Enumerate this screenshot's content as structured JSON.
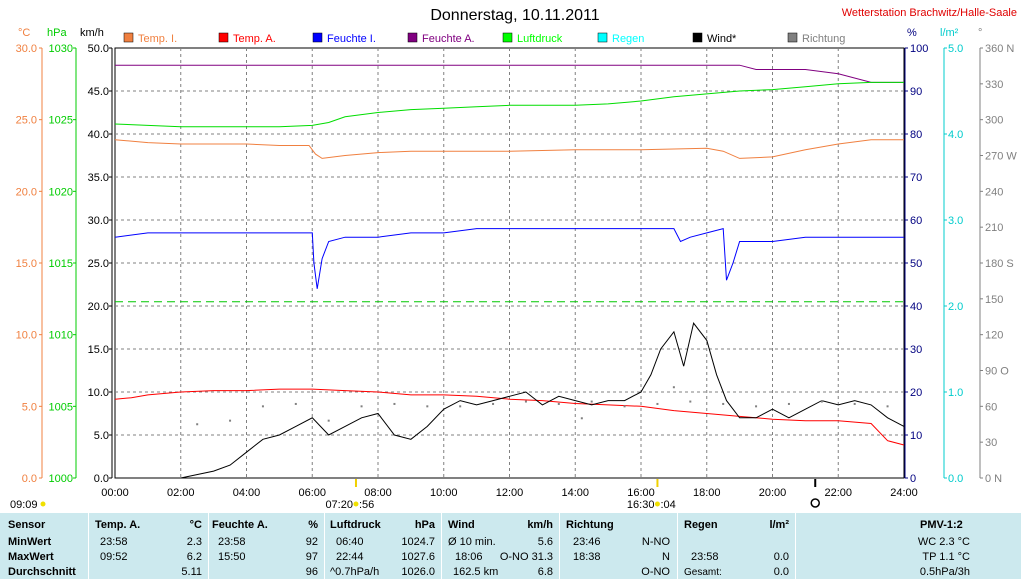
{
  "chart_data": {
    "type": "line",
    "title": "Donnerstag, 10.11.2011",
    "station": "Wetterstation Brachwitz/Halle-Saale",
    "axis_units": {
      "temp": "°C",
      "pressure": "hPa",
      "wind": "km/h",
      "humidity": "%",
      "rain": "l/m²",
      "direction": "°"
    },
    "x": {
      "range_hours": [
        0,
        24
      ],
      "tick_labels": [
        "00:00",
        "02:00",
        "04:00",
        "06:00",
        "08:00",
        "10:00",
        "12:00",
        "14:00",
        "16:00",
        "18:00",
        "20:00",
        "22:00",
        "24:00"
      ]
    },
    "axes": {
      "temp": {
        "range": [
          0,
          30
        ],
        "ticks": [
          "0.0",
          "5.0",
          "10.0",
          "15.0",
          "20.0",
          "25.0",
          "30.0"
        ],
        "color": "#f08040"
      },
      "pressure": {
        "range": [
          1000,
          1030
        ],
        "ticks": [
          "1000",
          "1005",
          "1010",
          "1015",
          "1020",
          "1025",
          "1030"
        ],
        "color": "#00cc00"
      },
      "wind": {
        "range": [
          0,
          50
        ],
        "ticks": [
          "0.0",
          "5.0",
          "10.0",
          "15.0",
          "20.0",
          "25.0",
          "30.0",
          "35.0",
          "40.0",
          "45.0",
          "50.0"
        ],
        "color": "#000000"
      },
      "humidity": {
        "range": [
          0,
          100
        ],
        "ticks": [
          "0",
          "10",
          "20",
          "30",
          "40",
          "50",
          "60",
          "70",
          "80",
          "90",
          "100"
        ],
        "color": "#000080"
      },
      "rain": {
        "range": [
          0,
          5
        ],
        "ticks": [
          "0.0",
          "1.0",
          "2.0",
          "3.0",
          "4.0",
          "5.0"
        ],
        "color": "#00cccc"
      },
      "direction": {
        "range": [
          0,
          360
        ],
        "ticks": [
          "0 N",
          "30",
          "60",
          "90 O",
          "120",
          "150",
          "180 S",
          "210",
          "240",
          "270 W",
          "300",
          "330",
          "360 N"
        ],
        "color": "#808080"
      }
    },
    "legend": [
      {
        "name": "Temp. I.",
        "color": "#f08040"
      },
      {
        "name": "Temp. A.",
        "color": "#ff0000"
      },
      {
        "name": "Feuchte I.",
        "color": "#0000ff"
      },
      {
        "name": "Feuchte A.",
        "color": "#800080"
      },
      {
        "name": "Luftdruck",
        "color": "#00ff00"
      },
      {
        "name": "Regen",
        "color": "#00ffff"
      },
      {
        "name": "Wind*",
        "color": "#000000"
      },
      {
        "name": "Richtung",
        "color": "#808080"
      }
    ],
    "series": [
      {
        "name": "Temp. I.",
        "axis": "temp",
        "x": [
          0,
          1,
          2,
          3,
          4,
          5,
          5.9,
          6.1,
          6.3,
          7,
          8,
          9,
          10,
          12,
          14,
          16,
          18,
          18.5,
          19,
          20,
          21,
          22,
          23,
          24
        ],
        "y": [
          23.6,
          23.4,
          23.3,
          23.3,
          23.3,
          23.2,
          23.2,
          22.6,
          22.3,
          22.5,
          22.7,
          22.8,
          22.8,
          22.8,
          22.9,
          22.9,
          23.0,
          22.8,
          22.3,
          22.4,
          22.9,
          23.3,
          23.6,
          23.6
        ]
      },
      {
        "name": "Temp. A.",
        "axis": "temp",
        "x": [
          0,
          0.5,
          1,
          2,
          3,
          4,
          5,
          6,
          7,
          8,
          9,
          10,
          11,
          12,
          13,
          14,
          15,
          16,
          17,
          18,
          19,
          20,
          21,
          22,
          23,
          23.5,
          24
        ],
        "y": [
          5.5,
          5.6,
          5.8,
          6.0,
          6.1,
          6.1,
          6.2,
          6.2,
          6.1,
          6.0,
          5.8,
          5.8,
          5.7,
          5.5,
          5.4,
          5.2,
          5.1,
          5.0,
          4.7,
          4.5,
          4.3,
          4.1,
          4.0,
          4.0,
          3.8,
          2.6,
          2.3
        ]
      },
      {
        "name": "Feuchte I.",
        "axis": "humidity",
        "x": [
          0,
          1,
          3,
          5,
          6,
          6.05,
          6.15,
          6.3,
          6.5,
          7,
          8,
          9,
          10,
          11,
          12,
          13,
          14,
          15,
          16,
          17,
          17.2,
          17.5,
          18,
          18.5,
          18.6,
          18.8,
          19,
          20,
          21,
          22,
          23,
          24
        ],
        "y": [
          56,
          57,
          57,
          57,
          57,
          50,
          44,
          51,
          55,
          56,
          56,
          57,
          57,
          58,
          58,
          58,
          58,
          58,
          58,
          58,
          55,
          56,
          57,
          58,
          46,
          50,
          55,
          55,
          56,
          56,
          56,
          56
        ]
      },
      {
        "name": "Feuchte A.",
        "axis": "humidity",
        "x": [
          0,
          2,
          4,
          6,
          8,
          10,
          12,
          14,
          16,
          18,
          19,
          19.5,
          20,
          21,
          22,
          23,
          24
        ],
        "y": [
          96,
          96,
          96,
          96,
          96,
          96,
          96,
          96,
          96,
          96,
          96,
          95,
          95,
          95,
          94,
          92,
          92
        ]
      },
      {
        "name": "Luftdruck",
        "axis": "pressure",
        "x": [
          0,
          1,
          2,
          3,
          4,
          5,
          6,
          6.5,
          7,
          8,
          9,
          10,
          11,
          12,
          13,
          14,
          15,
          16,
          17,
          18,
          19,
          20,
          21,
          22,
          23,
          24
        ],
        "y": [
          1024.7,
          1024.6,
          1024.5,
          1024.5,
          1024.5,
          1024.5,
          1024.6,
          1024.8,
          1025.2,
          1025.5,
          1025.7,
          1025.8,
          1025.9,
          1026.0,
          1026.0,
          1026.0,
          1026.1,
          1026.3,
          1026.6,
          1026.8,
          1027.0,
          1027.1,
          1027.3,
          1027.5,
          1027.6,
          1027.6
        ]
      },
      {
        "name": "Wind*",
        "axis": "wind",
        "x": [
          0,
          1,
          2,
          3,
          3.5,
          4,
          4.5,
          5,
          5.5,
          6,
          6.5,
          7,
          7.5,
          8,
          8.5,
          9,
          9.5,
          10,
          10.5,
          11,
          11.5,
          12,
          12.5,
          13,
          13.5,
          14,
          14.5,
          15,
          15.5,
          16,
          16.3,
          16.6,
          17,
          17.3,
          17.6,
          18,
          18.3,
          18.6,
          19,
          19.5,
          20,
          20.5,
          21,
          21.5,
          22,
          22.5,
          23,
          23.5,
          24
        ],
        "y": [
          0,
          0,
          0,
          0.8,
          1.5,
          3,
          4.5,
          5,
          6,
          7,
          5,
          6,
          7,
          7.5,
          5,
          4.5,
          6,
          8,
          9,
          8.5,
          9,
          9.5,
          10,
          8.5,
          9.5,
          9,
          8.5,
          9,
          9,
          10,
          12,
          15,
          17,
          13,
          18,
          16,
          12,
          9,
          7,
          7,
          8,
          7,
          8,
          9,
          8.5,
          9,
          8.5,
          7,
          6
        ]
      },
      {
        "name": "Regen",
        "axis": "rain",
        "x": [
          0,
          24
        ],
        "y": [
          2.05,
          2.05
        ]
      }
    ],
    "direction_points": [
      {
        "x": 2.5,
        "deg": 45
      },
      {
        "x": 3.5,
        "deg": 48
      },
      {
        "x": 4.5,
        "deg": 60
      },
      {
        "x": 5.5,
        "deg": 62
      },
      {
        "x": 6.5,
        "deg": 48
      },
      {
        "x": 7.5,
        "deg": 60
      },
      {
        "x": 8.5,
        "deg": 62
      },
      {
        "x": 9.5,
        "deg": 60
      },
      {
        "x": 10.5,
        "deg": 60
      },
      {
        "x": 11.5,
        "deg": 62
      },
      {
        "x": 12.5,
        "deg": 64
      },
      {
        "x": 13.5,
        "deg": 62
      },
      {
        "x": 14.5,
        "deg": 64
      },
      {
        "x": 15.5,
        "deg": 60
      },
      {
        "x": 16.5,
        "deg": 62
      },
      {
        "x": 17.5,
        "deg": 64
      },
      {
        "x": 18.5,
        "deg": 62
      },
      {
        "x": 19.5,
        "deg": 60
      },
      {
        "x": 20.5,
        "deg": 62
      },
      {
        "x": 21.5,
        "deg": 64
      },
      {
        "x": 22.5,
        "deg": 62
      },
      {
        "x": 23.5,
        "deg": 60
      },
      {
        "x": 14.2,
        "deg": 50
      },
      {
        "x": 17,
        "deg": 76
      }
    ],
    "sun": {
      "sunrise": "07:20",
      "sunrise_suffix": ":56",
      "sunset": "16:30",
      "sunset_suffix": ":04",
      "left_label": "09:09"
    },
    "sunrise_hour": 7.33,
    "sunset_hour": 16.5,
    "moon_hour": 21.3,
    "grid": true
  },
  "table": {
    "sensor": {
      "header": "Sensor",
      "rows": [
        "MinWert",
        "MaxWert",
        "Durchschnitt"
      ]
    },
    "temp_a": {
      "header": "Temp. A.",
      "unit": "°C",
      "rows": [
        [
          "23:58",
          "2.3"
        ],
        [
          "09:52",
          "6.2"
        ],
        [
          "",
          "5.11"
        ]
      ]
    },
    "feuchte_a": {
      "header": "Feuchte A.",
      "unit": "%",
      "rows": [
        [
          "23:58",
          "92"
        ],
        [
          "15:50",
          "97"
        ],
        [
          "",
          "96"
        ]
      ]
    },
    "luftdruck": {
      "header": "Luftdruck",
      "unit": "hPa",
      "rows": [
        [
          "06:40",
          "1024.7"
        ],
        [
          "22:44",
          "1027.6"
        ],
        [
          "^0.7hPa/h",
          "1026.0"
        ]
      ]
    },
    "wind": {
      "header": "Wind",
      "unit": "km/h",
      "rows": [
        [
          "Ø 10 min.",
          "5.6"
        ],
        [
          "18:06",
          "O-NO 31.3"
        ],
        [
          "162.5 km",
          "6.8"
        ]
      ]
    },
    "richtung": {
      "header": "Richtung",
      "rows": [
        [
          "23:46",
          "N-NO"
        ],
        [
          "18:38",
          "N"
        ],
        [
          "",
          "O-NO"
        ]
      ]
    },
    "regen": {
      "header": "Regen",
      "unit": "l/m²",
      "rows": [
        [
          "",
          ""
        ],
        [
          "23:58",
          "0.0"
        ],
        [
          "Gesamt:",
          "0.0"
        ]
      ]
    },
    "pmv": {
      "header": "PMV-1:2",
      "rows": [
        "WC 2.3 °C",
        "TP 1.1 °C",
        "0.5hPa/3h"
      ]
    }
  }
}
